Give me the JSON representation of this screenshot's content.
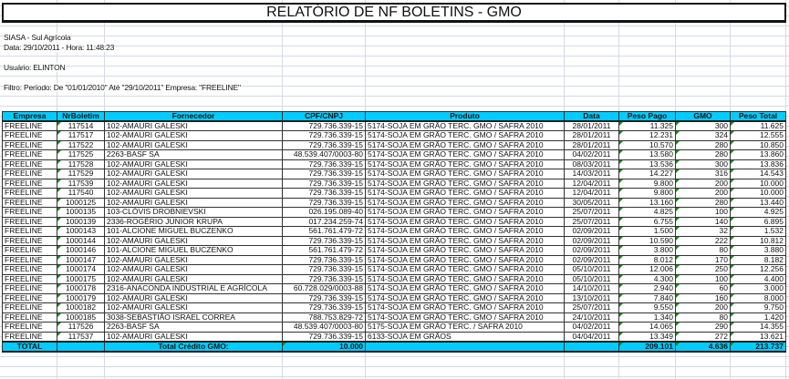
{
  "title": "RELATÓRIO DE NF BOLETINS - GMO",
  "info": {
    "company": "SIASA - Sul Agrícola",
    "datetime": "Data: 29/10/2011 - Hora: 11:48:23",
    "user": "Usuário: ELINTON",
    "filter": "Filtro: Período: De \"01/01/2010\" Até \"29/10/2011\" Empresa: \"FREELINE\""
  },
  "columns": [
    "Empresa",
    "NrBoletim",
    "Fornecedor",
    "CPF/CNPJ",
    "Produto",
    "Data",
    "Peso Pago",
    "GMO",
    "Peso Total"
  ],
  "rows": [
    [
      "FREELINE",
      "117514",
      "102-AMAURI GALESKI",
      "729.736.339-15",
      "5174-SOJA EM GRÃO TERC. GMO / SAFRA 2010",
      "28/01/2011",
      "11.325",
      "300",
      "11.625"
    ],
    [
      "FREELINE",
      "117517",
      "102-AMAURI GALESKI",
      "729.736.339-15",
      "5174-SOJA EM GRÃO TERC. GMO / SAFRA 2010",
      "28/01/2011",
      "12.231",
      "324",
      "12.555"
    ],
    [
      "FREELINE",
      "117522",
      "102-AMAURI GALESKI",
      "729.736.339-15",
      "5174-SOJA EM GRÃO TERC. GMO / SAFRA 2010",
      "28/01/2011",
      "10.570",
      "280",
      "10.850"
    ],
    [
      "FREELINE",
      "117525",
      "2263-BASF SA",
      "48.539.407/0003-80",
      "5174-SOJA EM GRÃO TERC. GMO / SAFRA 2010",
      "04/02/2011",
      "13.580",
      "280",
      "13.860"
    ],
    [
      "FREELINE",
      "117528",
      "102-AMAURI GALESKI",
      "729.736.339-15",
      "5174-SOJA EM GRÃO TERC. GMO / SAFRA 2010",
      "08/03/2011",
      "13.536",
      "300",
      "13.836"
    ],
    [
      "FREELINE",
      "117529",
      "102-AMAURI GALESKI",
      "729.736.339-15",
      "5174-SOJA EM GRÃO TERC. GMO / SAFRA 2010",
      "14/03/2011",
      "14.227",
      "316",
      "14.543"
    ],
    [
      "FREELINE",
      "117539",
      "102-AMAURI GALESKI",
      "729.736.339-15",
      "5174-SOJA EM GRÃO TERC. GMO / SAFRA 2010",
      "12/04/2011",
      "9.800",
      "200",
      "10.000"
    ],
    [
      "FREELINE",
      "117540",
      "102-AMAURI GALESKI",
      "729.736.339-15",
      "5174-SOJA EM GRÃO TERC. GMO / SAFRA 2010",
      "12/04/2011",
      "9.800",
      "200",
      "10.000"
    ],
    [
      "FREELINE",
      "1000125",
      "102-AMAURI GALESKI",
      "729.736.339-15",
      "5174-SOJA EM GRÃO TERC. GMO / SAFRA 2010",
      "30/05/2011",
      "13.160",
      "280",
      "13.440"
    ],
    [
      "FREELINE",
      "1000135",
      "103-CLÓVIS DROBNIEVSKI",
      "026.195.089-40",
      "5174-SOJA EM GRÃO TERC. GMO / SAFRA 2010",
      "25/07/2011",
      "4.825",
      "100",
      "4.925"
    ],
    [
      "FREELINE",
      "1000139",
      "2336-ROGÉRIO JUNIOR KRUPA",
      "017.234.259-74",
      "5174-SOJA EM GRÃO TERC. GMO / SAFRA 2010",
      "25/07/2011",
      "6.755",
      "140",
      "6.895"
    ],
    [
      "FREELINE",
      "1000143",
      "101-ALCIONE MIGUEL BUCZENKO",
      "561.761.479-72",
      "5174-SOJA EM GRÃO TERC. GMO / SAFRA 2010",
      "02/09/2011",
      "1.500",
      "32",
      "1.532"
    ],
    [
      "FREELINE",
      "1000144",
      "102-AMAURI GALESKI",
      "729.736.339-15",
      "5174-SOJA EM GRÃO TERC. GMO / SAFRA 2010",
      "02/09/2011",
      "10.590",
      "222",
      "10.812"
    ],
    [
      "FREELINE",
      "1000146",
      "101-ALCIONE MIGUEL BUCZENKO",
      "561.761.479-72",
      "5174-SOJA EM GRÃO TERC. GMO / SAFRA 2010",
      "02/09/2011",
      "3.800",
      "80",
      "3.880"
    ],
    [
      "FREELINE",
      "1000147",
      "102-AMAURI GALESKI",
      "729.736.339-15",
      "5174-SOJA EM GRÃO TERC. GMO / SAFRA 2010",
      "02/09/2011",
      "8.012",
      "170",
      "8.182"
    ],
    [
      "FREELINE",
      "1000174",
      "102-AMAURI GALESKI",
      "729.736.339-15",
      "5174-SOJA EM GRÃO TERC. GMO / SAFRA 2010",
      "05/10/2011",
      "12.006",
      "250",
      "12.256"
    ],
    [
      "FREELINE",
      "1000175",
      "102-AMAURI GALESKI",
      "729.736.339-15",
      "5174-SOJA EM GRÃO TERC. GMO / SAFRA 2010",
      "05/10/2011",
      "4.300",
      "100",
      "4.400"
    ],
    [
      "FREELINE",
      "1000178",
      "2316-ANACONDA INDUSTRIAL E AGRÍCOLA",
      "60.728.029/0003-88",
      "5174-SOJA EM GRÃO TERC. GMO / SAFRA 2010",
      "14/10/2011",
      "2.940",
      "60",
      "3.000"
    ],
    [
      "FREELINE",
      "1000179",
      "102-AMAURI GALESKI",
      "729.736.339-15",
      "5174-SOJA EM GRÃO TERC. GMO / SAFRA 2010",
      "13/10/2011",
      "7.840",
      "160",
      "8.000"
    ],
    [
      "FREELINE",
      "1000182",
      "102-AMAURI GALESKI",
      "729.736.339-15",
      "5174-SOJA EM GRÃO TERC. GMO / SAFRA 2010",
      "25/07/2011",
      "9.550",
      "200",
      "9.750"
    ],
    [
      "FREELINE",
      "1000185",
      "3038-SEBASTIÃO ISRAEL CORREA",
      "788.753.829-72",
      "5174-SOJA EM GRÃO TERC. GMO / SAFRA 2010",
      "24/10/2011",
      "1.340",
      "80",
      "1.420"
    ],
    [
      "FREELINE",
      "117526",
      "2263-BASF SA",
      "48.539.407/0003-80",
      "5175-SOJA EM GRÃO TERC. / SAFRA 2010",
      "04/02/2011",
      "14.065",
      "290",
      "14.355"
    ],
    [
      "FREELINE",
      "117537",
      "102-AMAURI GALESKI",
      "729.736.339-15",
      "6133-SOJA EM GRÃOS",
      "04/04/2011",
      "13.349",
      "272",
      "13.621"
    ]
  ],
  "total": {
    "label": "TOTAL",
    "credit_label": "Total Crédito GMO:",
    "credit_value": "10.000",
    "peso_pago": "209.101",
    "gmo": "4.636",
    "peso_total": "213.737"
  },
  "colors": {
    "header_bg": "#00ccff",
    "marker": "#1a8a1a"
  }
}
